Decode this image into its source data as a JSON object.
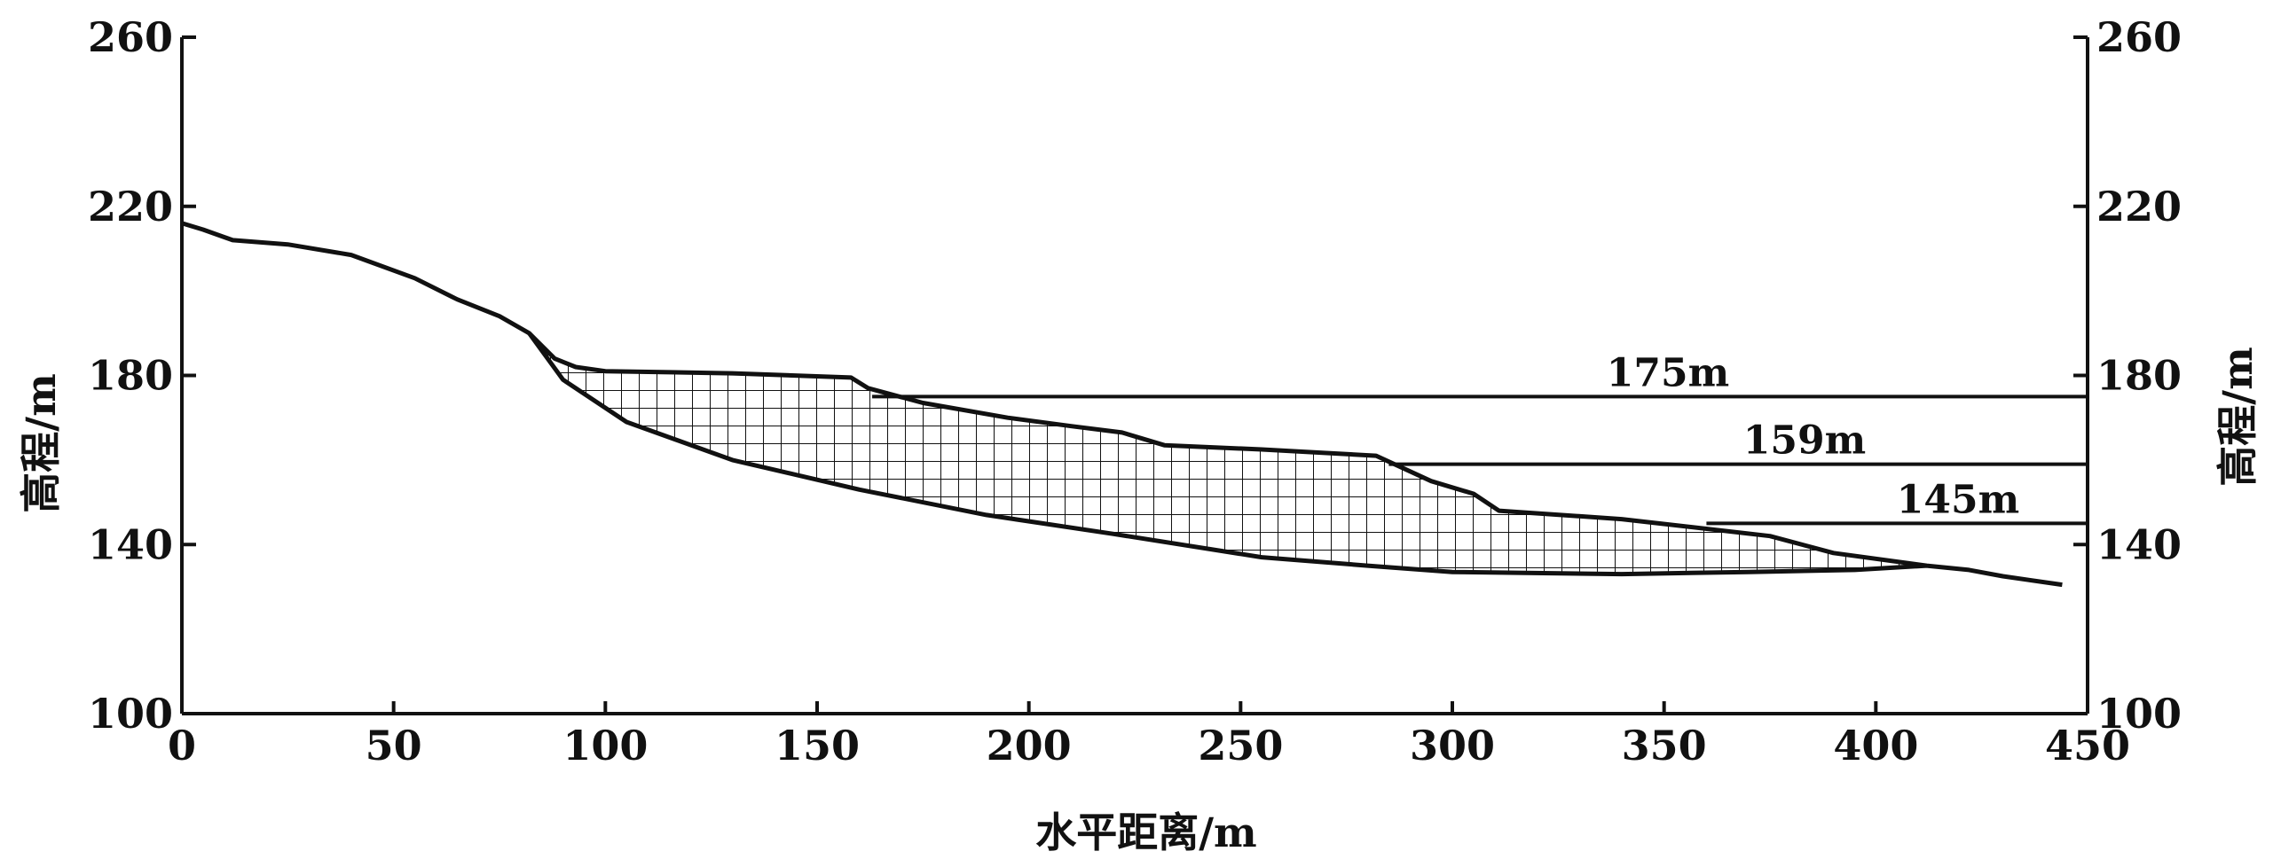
{
  "chart_data": {
    "type": "line",
    "title": "",
    "xlabel": "水平距离/m",
    "ylabel": "高程/m",
    "ylabel_right": "高程/m",
    "xlim": [
      0,
      450
    ],
    "ylim": [
      100,
      260
    ],
    "x_ticks": [
      0,
      50,
      100,
      150,
      200,
      250,
      300,
      350,
      400,
      450
    ],
    "y_ticks": [
      100,
      140,
      180,
      220,
      260
    ],
    "x_tick_labels": [
      "0",
      "50",
      "100",
      "150",
      "200",
      "250",
      "300",
      "350",
      "400",
      "450"
    ],
    "y_tick_labels": [
      "100",
      "140",
      "180",
      "220",
      "260"
    ],
    "grid": false,
    "legend": "none",
    "colors": {
      "line": "#111111",
      "hatch": "#111111",
      "background": "#ffffff"
    },
    "series": [
      {
        "role": "original-ground-surface",
        "points": [
          [
            0,
            216
          ],
          [
            5,
            214.5
          ],
          [
            12,
            212
          ],
          [
            25,
            211
          ],
          [
            40,
            208.5
          ],
          [
            55,
            203
          ],
          [
            65,
            198
          ],
          [
            75,
            194
          ],
          [
            82,
            190
          ],
          [
            88,
            184
          ],
          [
            93,
            182
          ],
          [
            100,
            181
          ],
          [
            130,
            180.5
          ],
          [
            158,
            179.5
          ],
          [
            162,
            177
          ],
          [
            175,
            173.5
          ],
          [
            195,
            170
          ],
          [
            210,
            168
          ],
          [
            222,
            166.5
          ],
          [
            232,
            163.5
          ],
          [
            255,
            162.5
          ],
          [
            282,
            161
          ],
          [
            295,
            155
          ],
          [
            305,
            152
          ],
          [
            311,
            148
          ],
          [
            340,
            146
          ],
          [
            375,
            142
          ],
          [
            390,
            138
          ],
          [
            412,
            135
          ],
          [
            422,
            134
          ],
          [
            430,
            132.5
          ],
          [
            444,
            130.5
          ]
        ]
      },
      {
        "role": "slip-surface",
        "points": [
          [
            82,
            190
          ],
          [
            90,
            179
          ],
          [
            105,
            169
          ],
          [
            130,
            160
          ],
          [
            160,
            153
          ],
          [
            190,
            147
          ],
          [
            220,
            142.5
          ],
          [
            255,
            137
          ],
          [
            280,
            135
          ],
          [
            300,
            133.5
          ],
          [
            340,
            133
          ],
          [
            370,
            133.5
          ],
          [
            395,
            134
          ],
          [
            412,
            135
          ]
        ]
      }
    ],
    "water_levels": [
      {
        "value": 175,
        "label": "175m",
        "x_start": 163,
        "x_end": 450
      },
      {
        "value": 159,
        "label": "159m",
        "x_start": 285,
        "x_end": 450
      },
      {
        "value": 145,
        "label": "145m",
        "x_start": 360,
        "x_end": 450
      }
    ]
  }
}
